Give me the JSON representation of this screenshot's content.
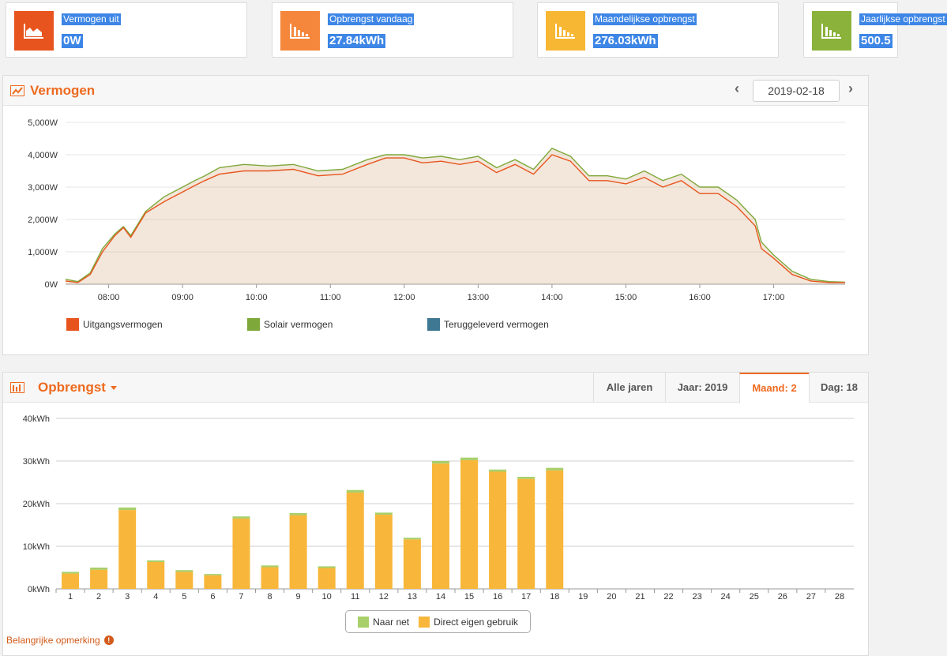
{
  "cards": [
    {
      "label": "Vermogen uit",
      "value": "0W",
      "color": "#e8541e",
      "icon": "area-chart-icon"
    },
    {
      "label": "Opbrengst vandaag",
      "value": "27.84kWh",
      "color": "#f5873c",
      "icon": "bar-chart-icon"
    },
    {
      "label": "Maandelijkse opbrengst",
      "value": "276.03kWh",
      "color": "#f7b733",
      "icon": "bar-chart-icon"
    },
    {
      "label": "Jaarlijkse opbrengst",
      "value": "500.5",
      "color": "#8bb23a",
      "icon": "bar-chart-icon"
    }
  ],
  "power_panel": {
    "title": "Vermogen",
    "date": "2019-02-18",
    "legend": [
      {
        "label": "Uitgangsvermogen",
        "color": "#e8541e"
      },
      {
        "label": "Solair vermogen",
        "color": "#7fa83a"
      },
      {
        "label": "Teruggeleverd vermogen",
        "color": "#3f7892"
      }
    ]
  },
  "yield_panel": {
    "title": "Opbrengst",
    "tabs": [
      "Alle jaren",
      "Jaar: 2019",
      "Maand: 2",
      "Dag: 18"
    ],
    "active_tab": 2,
    "legend": [
      {
        "label": "Naar net",
        "color": "#a8cf6a"
      },
      {
        "label": "Direct eigen gebruik",
        "color": "#f8b73a"
      }
    ]
  },
  "note": "Belangrijke opmerking",
  "chart_data": [
    {
      "type": "area",
      "yticks": [
        "0W",
        "1,000W",
        "2,000W",
        "3,000W",
        "4,000W",
        "5,000W"
      ],
      "xticks": [
        "08:00",
        "09:00",
        "10:00",
        "11:00",
        "12:00",
        "13:00",
        "14:00",
        "15:00",
        "16:00",
        "17:00"
      ],
      "ylim": [
        0,
        5000
      ],
      "xlim": [
        "07:25",
        "17:58"
      ],
      "grid": true,
      "series": [
        {
          "name": "Uitgangsvermogen",
          "color": "#e8541e",
          "x": [
            "07:25",
            "07:35",
            "07:45",
            "07:55",
            "08:05",
            "08:12",
            "08:18",
            "08:30",
            "08:45",
            "09:00",
            "09:10",
            "09:18",
            "09:30",
            "09:50",
            "10:10",
            "10:30",
            "10:50",
            "11:10",
            "11:30",
            "11:45",
            "12:00",
            "12:15",
            "12:30",
            "12:45",
            "13:00",
            "13:15",
            "13:30",
            "13:45",
            "14:00",
            "14:15",
            "14:30",
            "14:45",
            "15:00",
            "15:15",
            "15:30",
            "15:45",
            "16:00",
            "16:15",
            "16:30",
            "16:45",
            "16:50",
            "17:00",
            "17:15",
            "17:30",
            "17:45",
            "17:58"
          ],
          "y": [
            100,
            50,
            300,
            1000,
            1500,
            1750,
            1450,
            2200,
            2550,
            2850,
            3050,
            3200,
            3400,
            3500,
            3500,
            3550,
            3350,
            3400,
            3700,
            3900,
            3900,
            3750,
            3800,
            3700,
            3800,
            3450,
            3700,
            3400,
            4000,
            3800,
            3200,
            3200,
            3100,
            3300,
            3000,
            3200,
            2800,
            2800,
            2400,
            1800,
            1100,
            800,
            300,
            100,
            50,
            50
          ]
        },
        {
          "name": "Solair vermogen",
          "color": "#7fa83a",
          "x": [
            "07:25",
            "07:35",
            "07:45",
            "07:55",
            "08:05",
            "08:12",
            "08:18",
            "08:30",
            "08:45",
            "09:00",
            "09:10",
            "09:18",
            "09:30",
            "09:50",
            "10:10",
            "10:30",
            "10:50",
            "11:10",
            "11:30",
            "11:45",
            "12:00",
            "12:15",
            "12:30",
            "12:45",
            "13:00",
            "13:15",
            "13:30",
            "13:45",
            "14:00",
            "14:15",
            "14:30",
            "14:45",
            "15:00",
            "15:15",
            "15:30",
            "15:45",
            "16:00",
            "16:15",
            "16:30",
            "16:45",
            "16:50",
            "17:00",
            "17:15",
            "17:30",
            "17:45",
            "17:58"
          ],
          "y": [
            150,
            80,
            350,
            1100,
            1550,
            1780,
            1500,
            2250,
            2700,
            3000,
            3200,
            3350,
            3600,
            3700,
            3650,
            3700,
            3500,
            3550,
            3850,
            4000,
            4000,
            3900,
            3950,
            3850,
            3950,
            3600,
            3850,
            3550,
            4200,
            3950,
            3350,
            3350,
            3250,
            3500,
            3200,
            3400,
            3000,
            3000,
            2600,
            2000,
            1300,
            900,
            400,
            150,
            80,
            60
          ]
        }
      ]
    },
    {
      "type": "bar",
      "stacked": true,
      "yticks": [
        "0kWh",
        "10kWh",
        "20kWh",
        "30kWh",
        "40kWh"
      ],
      "ylim": [
        0,
        40
      ],
      "categories": [
        "1",
        "2",
        "3",
        "4",
        "5",
        "6",
        "7",
        "8",
        "9",
        "10",
        "11",
        "12",
        "13",
        "14",
        "15",
        "16",
        "17",
        "18",
        "19",
        "20",
        "21",
        "22",
        "23",
        "24",
        "25",
        "26",
        "27",
        "28"
      ],
      "series": [
        {
          "name": "Direct eigen gebruik",
          "values": [
            3.6,
            4.5,
            18.5,
            6.3,
            4.0,
            3.2,
            16.5,
            5.1,
            17.3,
            4.9,
            22.6,
            17.4,
            11.6,
            29.4,
            30.2,
            27.5,
            25.8,
            27.8,
            0,
            0,
            0,
            0,
            0,
            0,
            0,
            0,
            0,
            0
          ]
        },
        {
          "name": "Naar net",
          "values": [
            0.4,
            0.5,
            0.6,
            0.4,
            0.4,
            0.3,
            0.5,
            0.4,
            0.5,
            0.4,
            0.6,
            0.5,
            0.4,
            0.6,
            0.6,
            0.5,
            0.5,
            0.6,
            0,
            0,
            0,
            0,
            0,
            0,
            0,
            0,
            0,
            0
          ]
        }
      ]
    }
  ]
}
